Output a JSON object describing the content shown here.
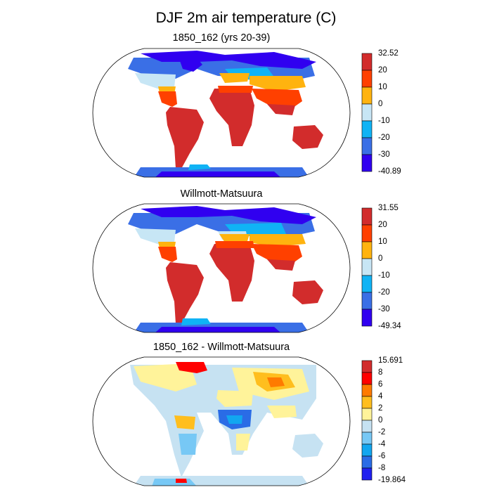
{
  "title": "DJF 2m air temperature (C)",
  "panels": [
    {
      "id": "model",
      "title": "1850_162 (yrs 20-39)",
      "colorbar": {
        "labels": [
          "32.52",
          "20",
          "10",
          "0",
          "-10",
          "-20",
          "-30",
          "-40.89"
        ],
        "colors": [
          "#d22c2c",
          "#ff4000",
          "#ffb30f",
          "#c7e6f5",
          "#10b3f5",
          "#3a6fe6",
          "#3000f0"
        ]
      }
    },
    {
      "id": "obs",
      "title": "Willmott-Matsuura",
      "colorbar": {
        "labels": [
          "31.55",
          "20",
          "10",
          "0",
          "-10",
          "-20",
          "-30",
          "-49.34"
        ],
        "colors": [
          "#d22c2c",
          "#ff4000",
          "#ffb30f",
          "#c7e6f5",
          "#10b3f5",
          "#3a6fe6",
          "#3000f0"
        ]
      }
    },
    {
      "id": "diff",
      "title": "1850_162 - Willmott-Matsuura",
      "colorbar": {
        "labels": [
          "15.691",
          "8",
          "6",
          "4",
          "2",
          "0",
          "-2",
          "-4",
          "-6",
          "-8",
          "-19.864"
        ],
        "colors": [
          "#d22c2c",
          "#ff0000",
          "#ff7a00",
          "#ffbe1e",
          "#fff39a",
          "#c6e2f2",
          "#77c8f5",
          "#12a6f0",
          "#2a6ce6",
          "#2020f0"
        ]
      }
    }
  ],
  "colors": {
    "warm": "#d22c2c",
    "hot": "#ff4000",
    "mild": "#ffb30f",
    "cool": "#c7e6f5",
    "cold": "#10b3f5",
    "colder": "#3a6fe6",
    "coldest": "#3000f0"
  }
}
